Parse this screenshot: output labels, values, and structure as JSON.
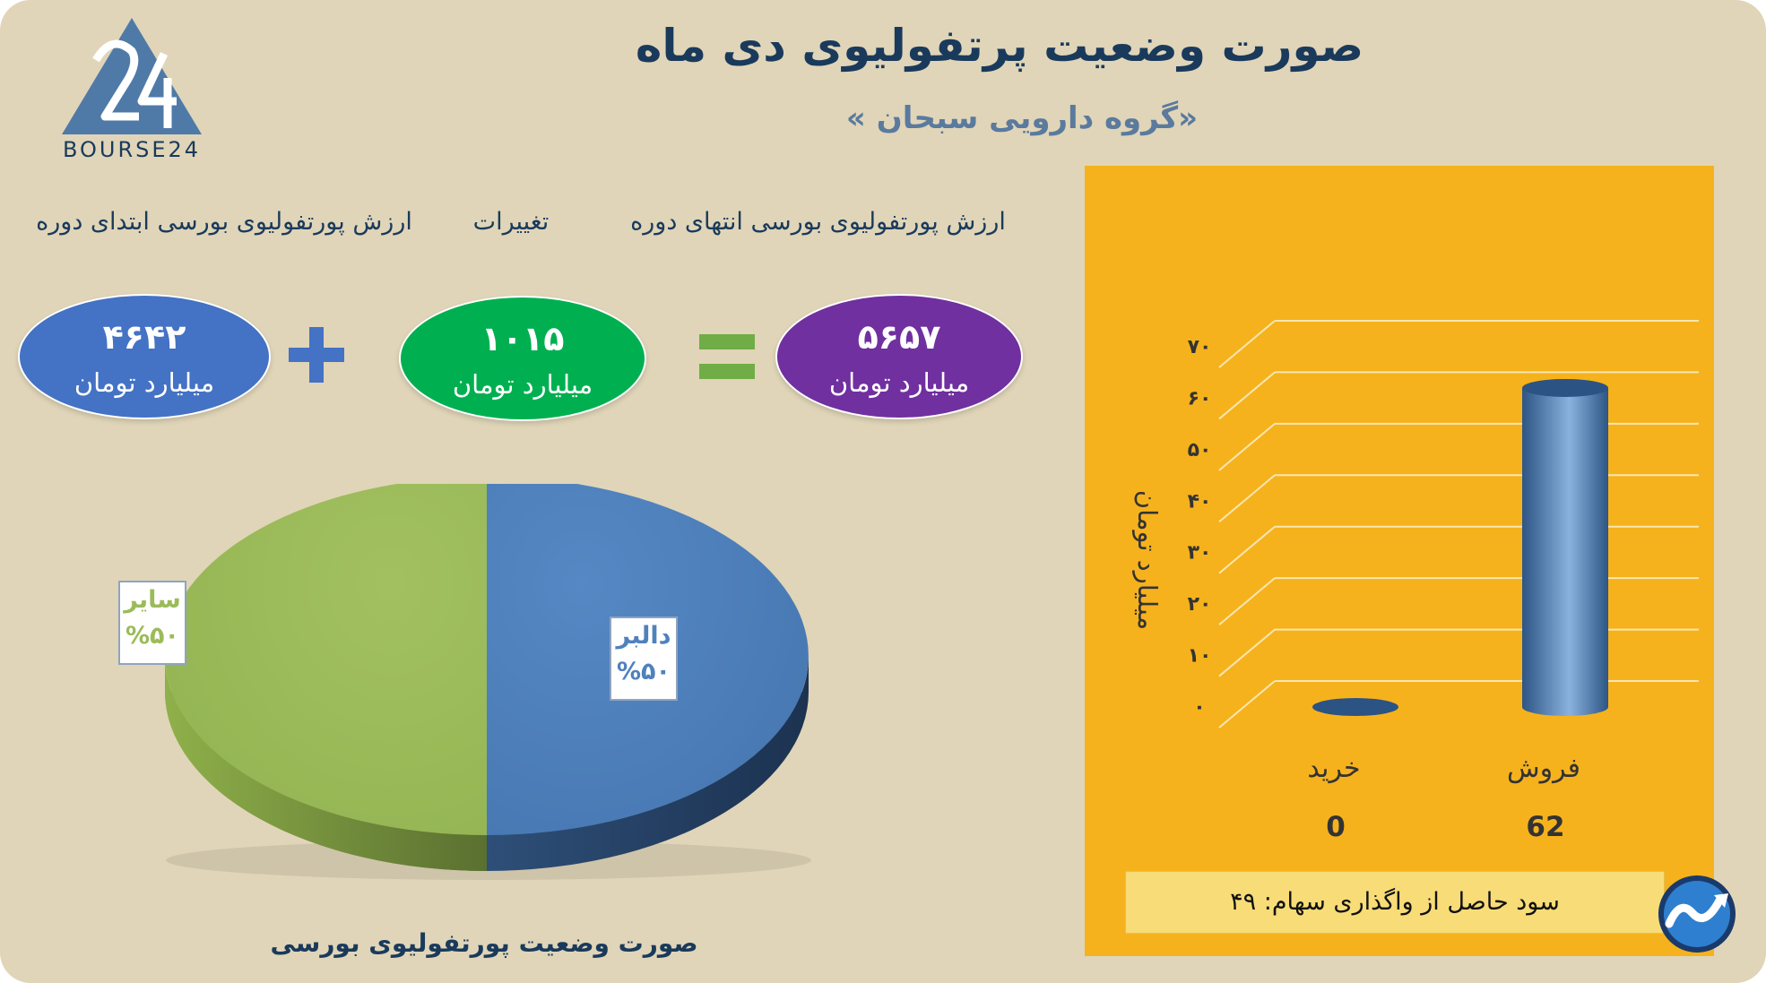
{
  "header": {
    "title": "صورت وضعیت پرتفولیوی دی ماه",
    "subtitle": "«گروه دارویی سبحان »",
    "logo_text": "BOURSE24"
  },
  "equation": {
    "labels": {
      "end": "ارزش پورتفولیوی بورسی انتهای دوره",
      "change": "تغییرات",
      "start": "ارزش پورتفولیوی بورسی ابتدای دوره"
    },
    "end_value": "۵۶۵۷",
    "change_value": "۱۰۱۵",
    "start_value": "۴۶۴۲",
    "unit": "میلیارد تومان",
    "colors": {
      "end": "#7030a0",
      "change": "#00b050",
      "start": "#4472c4",
      "plus": "#4472c4",
      "equals": "#70ad47"
    }
  },
  "pie": {
    "caption": "صورت وضعیت پورتفولیوی بورسی"
  },
  "bar": {
    "ylabel": "میلیارد تومان",
    "value_labels": [
      "0",
      "62"
    ]
  },
  "note": {
    "text": "سود حاصل از واگذاری سهام: ۴۹"
  },
  "chart_data": [
    {
      "type": "pie",
      "title": "صورت وضعیت پورتفولیوی بورسی",
      "labels": [
        "دالبر",
        "سایر"
      ],
      "values": [
        50,
        50
      ],
      "display_values": [
        "%۵۰",
        "%۵۰"
      ],
      "colors": [
        "#4f81bd",
        "#9bbb59"
      ]
    },
    {
      "type": "bar",
      "categories": [
        "خرید",
        "فروش"
      ],
      "values": [
        0,
        62
      ],
      "ylabel": "میلیارد تومان",
      "ylim": [
        0,
        70
      ],
      "yticks": [
        "۰",
        "۱۰",
        "۲۰",
        "۳۰",
        "۴۰",
        "۵۰",
        "۶۰",
        "۷۰"
      ],
      "grid": true,
      "color": "#4a78ad"
    }
  ]
}
